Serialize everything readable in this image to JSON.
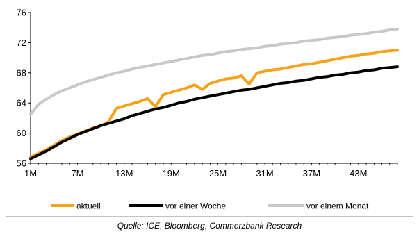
{
  "chart_data": {
    "type": "line",
    "x_ticks": [
      "1M",
      "7M",
      "13M",
      "19M",
      "25M",
      "31M",
      "37M",
      "43M"
    ],
    "ylim": [
      56,
      76
    ],
    "y_ticks": [
      56,
      60,
      64,
      68,
      72,
      76
    ],
    "xlim": [
      1,
      48
    ],
    "grid": false,
    "legend_position": "bottom",
    "series": [
      {
        "name": "aktuell",
        "color": "#f7a21b",
        "x": [
          1,
          2,
          3,
          4,
          5,
          6,
          7,
          8,
          9,
          10,
          11,
          12,
          13,
          14,
          15,
          16,
          17,
          18,
          19,
          20,
          21,
          22,
          23,
          24,
          25,
          26,
          27,
          28,
          29,
          30,
          31,
          32,
          33,
          34,
          35,
          36,
          37,
          38,
          39,
          40,
          41,
          42,
          43,
          44,
          45,
          46,
          47,
          48
        ],
        "values": [
          56.8,
          57.3,
          57.8,
          58.4,
          59.0,
          59.5,
          59.9,
          60.3,
          60.7,
          61.0,
          61.5,
          63.3,
          63.6,
          63.9,
          64.2,
          64.6,
          63.5,
          65.1,
          65.4,
          65.7,
          66.0,
          66.4,
          65.8,
          66.6,
          66.9,
          67.2,
          67.3,
          67.6,
          66.5,
          68.0,
          68.2,
          68.4,
          68.5,
          68.7,
          68.9,
          69.1,
          69.2,
          69.4,
          69.6,
          69.8,
          70.0,
          70.2,
          70.3,
          70.5,
          70.6,
          70.8,
          70.9,
          71.0
        ]
      },
      {
        "name": "vor einer Woche",
        "color": "#000000",
        "x": [
          1,
          2,
          3,
          4,
          5,
          6,
          7,
          8,
          9,
          10,
          11,
          12,
          13,
          14,
          15,
          16,
          17,
          18,
          19,
          20,
          21,
          22,
          23,
          24,
          25,
          26,
          27,
          28,
          29,
          30,
          31,
          32,
          33,
          34,
          35,
          36,
          37,
          38,
          39,
          40,
          41,
          42,
          43,
          44,
          45,
          46,
          47,
          48
        ],
        "values": [
          56.6,
          57.1,
          57.6,
          58.2,
          58.8,
          59.3,
          59.8,
          60.2,
          60.6,
          61.0,
          61.3,
          61.6,
          61.9,
          62.3,
          62.6,
          62.9,
          63.2,
          63.4,
          63.7,
          64.0,
          64.2,
          64.5,
          64.7,
          64.9,
          65.1,
          65.3,
          65.5,
          65.7,
          65.8,
          66.0,
          66.2,
          66.4,
          66.6,
          66.7,
          66.9,
          67.0,
          67.2,
          67.4,
          67.5,
          67.7,
          67.8,
          68.0,
          68.1,
          68.3,
          68.4,
          68.6,
          68.7,
          68.8
        ]
      },
      {
        "name": "vor einem Monat",
        "color": "#c8c8c8",
        "x": [
          1,
          2,
          3,
          4,
          5,
          6,
          7,
          8,
          9,
          10,
          11,
          12,
          13,
          14,
          15,
          16,
          17,
          18,
          19,
          20,
          21,
          22,
          23,
          24,
          25,
          26,
          27,
          28,
          29,
          30,
          31,
          32,
          33,
          34,
          35,
          36,
          37,
          38,
          39,
          40,
          41,
          42,
          43,
          44,
          45,
          46,
          47,
          48
        ],
        "values": [
          62.5,
          63.8,
          64.5,
          65.1,
          65.6,
          66.0,
          66.4,
          66.8,
          67.1,
          67.4,
          67.7,
          68.0,
          68.2,
          68.5,
          68.7,
          68.9,
          69.1,
          69.3,
          69.5,
          69.7,
          69.9,
          70.1,
          70.3,
          70.4,
          70.6,
          70.8,
          70.9,
          71.1,
          71.2,
          71.3,
          71.5,
          71.6,
          71.8,
          71.9,
          72.0,
          72.2,
          72.3,
          72.4,
          72.6,
          72.7,
          72.8,
          73.0,
          73.1,
          73.2,
          73.4,
          73.5,
          73.7,
          73.8
        ]
      }
    ]
  },
  "source": "Quelle: ICE, Bloomberg, Commerzbank Research"
}
